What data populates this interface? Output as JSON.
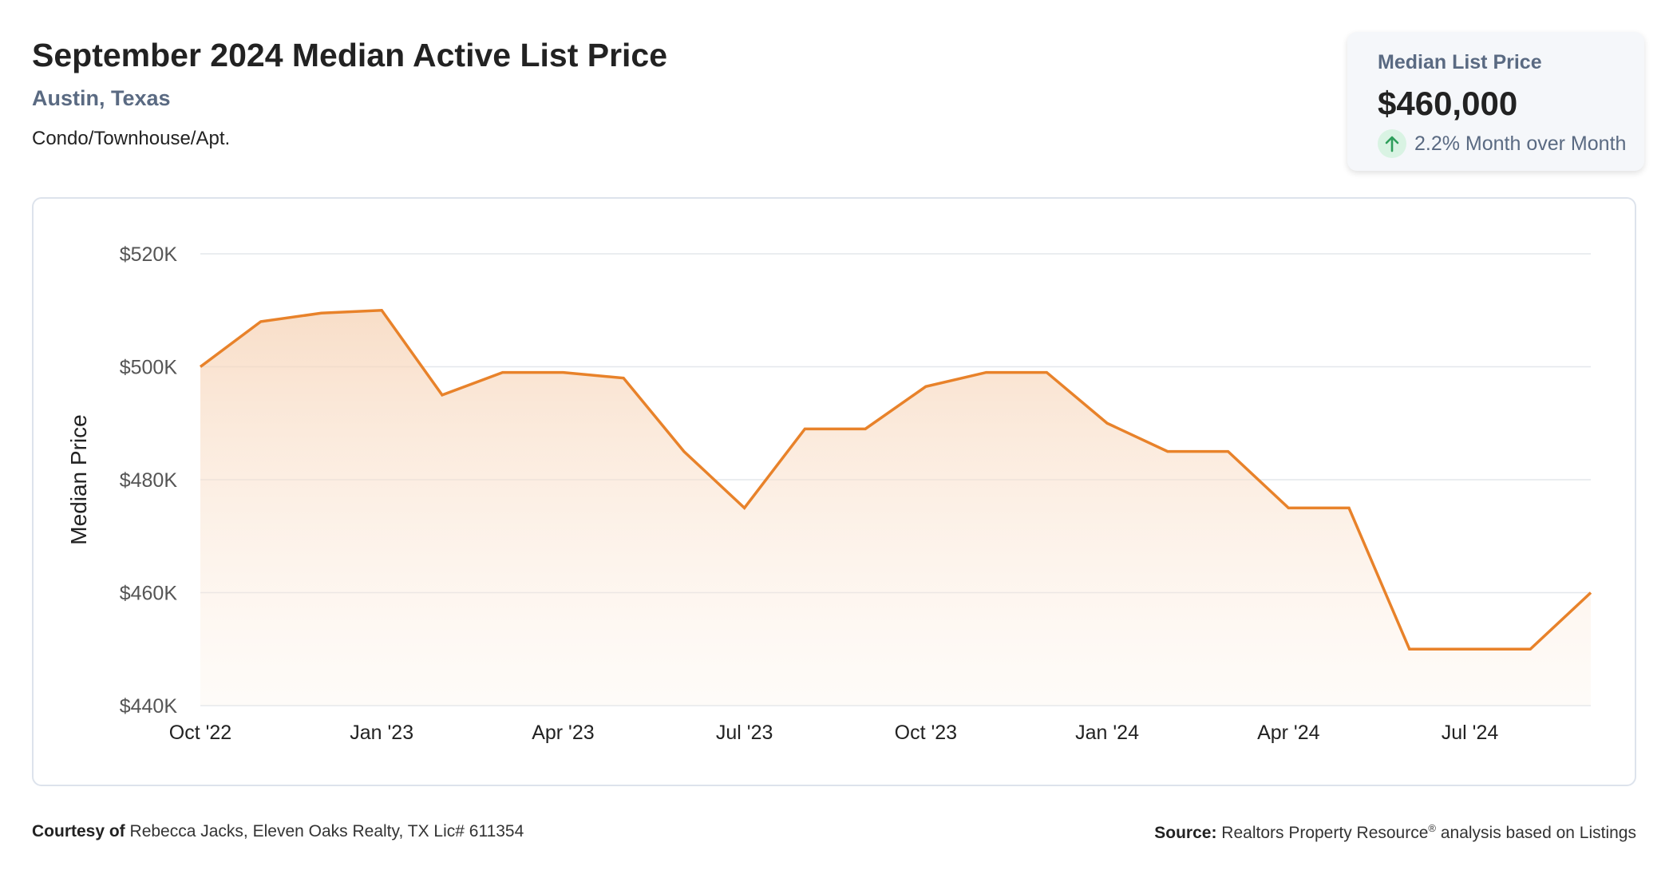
{
  "header": {
    "title": "September 2024 Median Active List Price",
    "location": "Austin, Texas",
    "property_type": "Condo/Townhouse/Apt."
  },
  "kpi": {
    "label": "Median List Price",
    "value": "$460,000",
    "change_text": "2.2% Month over Month",
    "direction_icon": "arrow-up-icon",
    "positive_color": "#2e9e5b"
  },
  "footer": {
    "courtesy_label": "Courtesy of",
    "courtesy_text": "Rebecca Jacks, Eleven Oaks Realty, TX Lic# 611354",
    "source_label": "Source:",
    "source_text": "Realtors Property Resource",
    "source_sup": "®",
    "source_tail": " analysis based on Listings"
  },
  "chart_data": {
    "type": "area",
    "title": "",
    "xlabel": "",
    "ylabel": "Median Price",
    "ylim": [
      440000,
      520000
    ],
    "yticks": [
      440000,
      460000,
      480000,
      500000,
      520000
    ],
    "ytick_labels": [
      "$440K",
      "$460K",
      "$480K",
      "$500K",
      "$520K"
    ],
    "x_tick_labels": [
      "Oct '22",
      "Jan '23",
      "Apr '23",
      "Jul '23",
      "Oct '23",
      "Jan '24",
      "Apr '24",
      "Jul '24"
    ],
    "x": [
      "Oct '22",
      "Nov '22",
      "Dec '22",
      "Jan '23",
      "Feb '23",
      "Mar '23",
      "Apr '23",
      "May '23",
      "Jun '23",
      "Jul '23",
      "Aug '23",
      "Sep '23",
      "Oct '23",
      "Nov '23",
      "Dec '23",
      "Jan '24",
      "Feb '24",
      "Mar '24",
      "Apr '24",
      "May '24",
      "Jun '24",
      "Jul '24",
      "Aug '24",
      "Sep '24"
    ],
    "series": [
      {
        "values": [
          500000,
          508000,
          509500,
          510000,
          495000,
          499000,
          499000,
          498000,
          485000,
          475000,
          489000,
          489000,
          496500,
          499000,
          499000,
          490000,
          485000,
          485000,
          475000,
          475000,
          450000,
          450000,
          450000,
          460000
        ],
        "color": "#e8822a"
      }
    ],
    "grid": true,
    "legend": "none"
  }
}
